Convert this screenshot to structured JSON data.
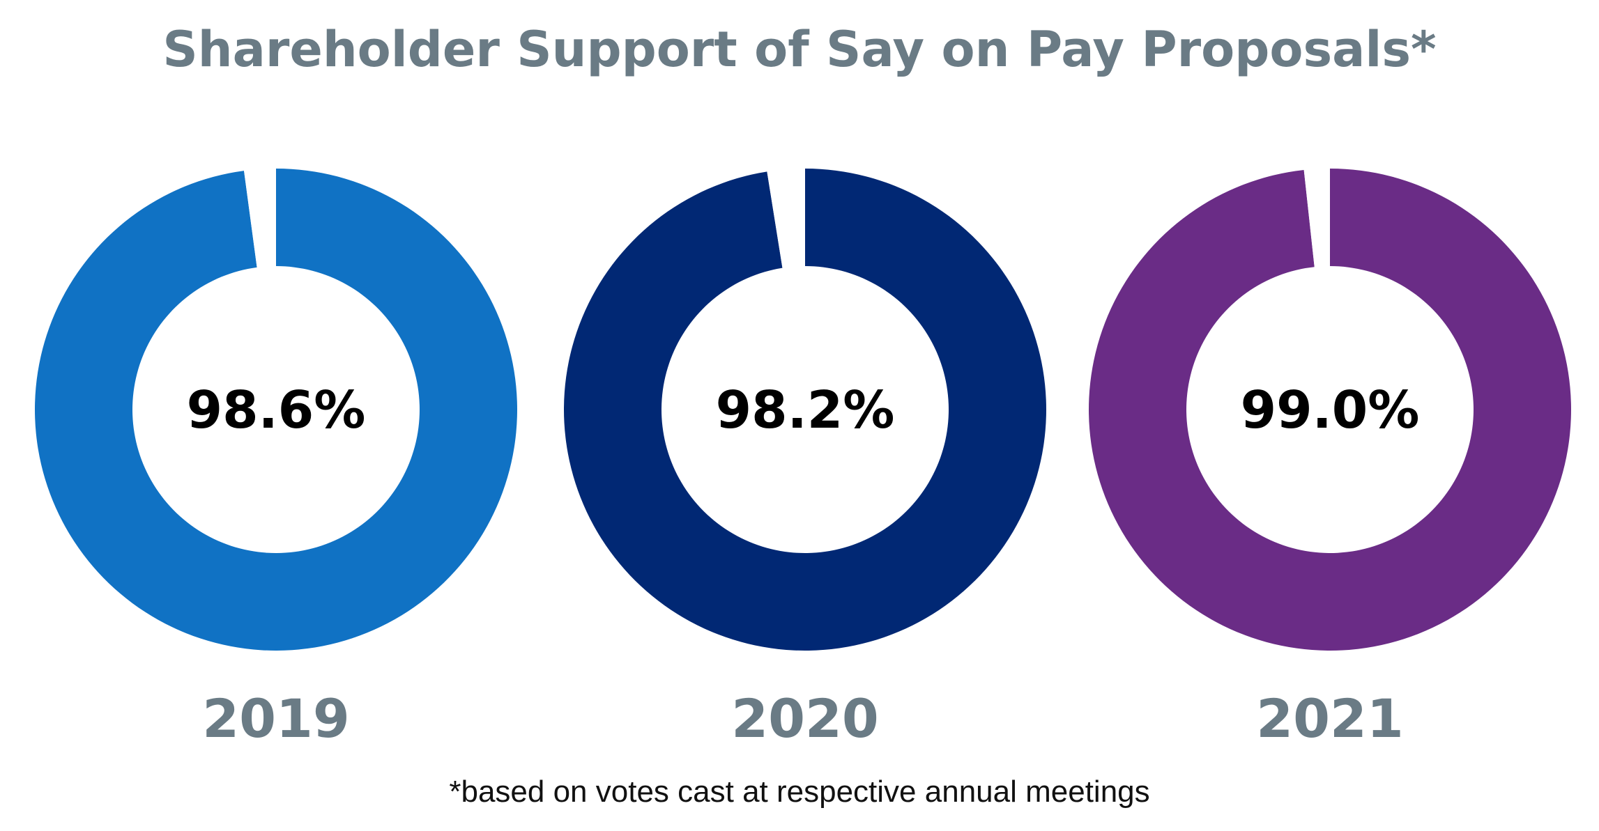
{
  "chart_data": {
    "type": "pie",
    "title": "Shareholder Support of Say on Pay Proposals*",
    "footnote": "*based on votes cast at respective annual meetings",
    "charts": [
      {
        "year": "2019",
        "value": 98.6,
        "label": "98.6%",
        "color": "#1072c4"
      },
      {
        "year": "2020",
        "value": 98.2,
        "label": "98.2%",
        "color": "#012874"
      },
      {
        "year": "2021",
        "value": 99.0,
        "label": "99.0%",
        "color": "#6a2c86"
      }
    ]
  }
}
